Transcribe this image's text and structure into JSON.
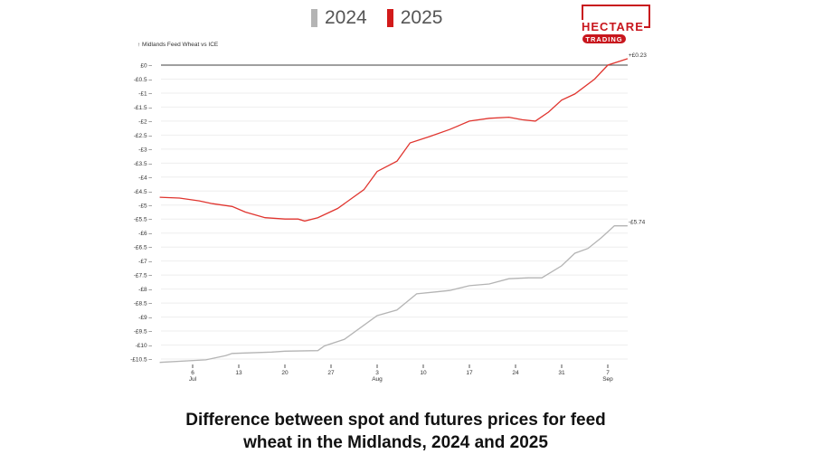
{
  "legend": [
    {
      "label": "2024",
      "color": "#b4b4b4"
    },
    {
      "label": "2025",
      "color": "#d21a1a"
    }
  ],
  "logo": {
    "text": "HECTARE",
    "sub": "TRADING",
    "color": "#c8161d"
  },
  "title_line1": "Difference between spot and futures prices for feed",
  "title_line2": "wheat in the Midlands, 2024 and 2025",
  "chart_data": {
    "type": "line",
    "ylabel": "↑ Midlands Feed Wheat vs ICE",
    "ylim": [
      -10.5,
      0
    ],
    "yticks": [
      "£0",
      "-£0.5",
      "-£1",
      "-£1.5",
      "-£2",
      "-£2.5",
      "-£3",
      "-£3.5",
      "-£4",
      "-£4.5",
      "-£5",
      "-£5.5",
      "-£6",
      "-£6.5",
      "-£7",
      "-£7.5",
      "-£8",
      "-£8.5",
      "-£9",
      "-£9.5",
      "-£10",
      "-£10.5"
    ],
    "xticks": [
      {
        "day": "6",
        "month": "Jul"
      },
      {
        "day": "13",
        "month": ""
      },
      {
        "day": "20",
        "month": ""
      },
      {
        "day": "27",
        "month": ""
      },
      {
        "day": "3",
        "month": "Aug"
      },
      {
        "day": "10",
        "month": ""
      },
      {
        "day": "17",
        "month": ""
      },
      {
        "day": "24",
        "month": ""
      },
      {
        "day": "31",
        "month": ""
      },
      {
        "day": "7",
        "month": "Sep"
      }
    ],
    "grid": true,
    "series": [
      {
        "name": "2024",
        "color": "#b4b4b4",
        "end_label": "-£5.74",
        "x": [
          "Jul 1",
          "Jul 8",
          "Jul 11",
          "Jul 12",
          "Jul 18",
          "Jul 20",
          "Jul 25",
          "Jul 26",
          "Jul 29",
          "Aug 3",
          "Aug 6",
          "Aug 9",
          "Aug 12",
          "Aug 14",
          "Aug 17",
          "Aug 20",
          "Aug 23",
          "Aug 26",
          "Aug 28",
          "Aug 31",
          "Sep 2",
          "Sep 4",
          "Sep 6",
          "Sep 8",
          "Sep 10"
        ],
        "y": [
          -10.62,
          -10.53,
          -10.38,
          -10.3,
          -10.25,
          -10.22,
          -10.2,
          -10.03,
          -9.8,
          -8.95,
          -8.75,
          -8.17,
          -8.1,
          -8.05,
          -7.88,
          -7.82,
          -7.63,
          -7.6,
          -7.6,
          -7.17,
          -6.72,
          -6.55,
          -6.17,
          -5.74,
          -5.74
        ]
      },
      {
        "name": "2025",
        "color": "#e0352f",
        "end_label": "+£0.23",
        "x": [
          "Jul 1",
          "Jul 4",
          "Jul 7",
          "Jul 9",
          "Jul 12",
          "Jul 14",
          "Jul 17",
          "Jul 20",
          "Jul 22",
          "Jul 23",
          "Jul 25",
          "Jul 28",
          "Aug 1",
          "Aug 3",
          "Aug 6",
          "Aug 8",
          "Aug 11",
          "Aug 14",
          "Aug 17",
          "Aug 20",
          "Aug 23",
          "Aug 25",
          "Aug 27",
          "Aug 29",
          "Aug 31",
          "Sep 2",
          "Sep 5",
          "Sep 7",
          "Sep 10"
        ],
        "y": [
          -4.72,
          -4.75,
          -4.85,
          -4.95,
          -5.05,
          -5.25,
          -5.45,
          -5.5,
          -5.5,
          -5.57,
          -5.45,
          -5.12,
          -4.45,
          -3.8,
          -3.43,
          -2.78,
          -2.55,
          -2.3,
          -2.0,
          -1.9,
          -1.86,
          -1.95,
          -2.0,
          -1.68,
          -1.25,
          -1.03,
          -0.5,
          0.0,
          0.23
        ]
      }
    ]
  }
}
